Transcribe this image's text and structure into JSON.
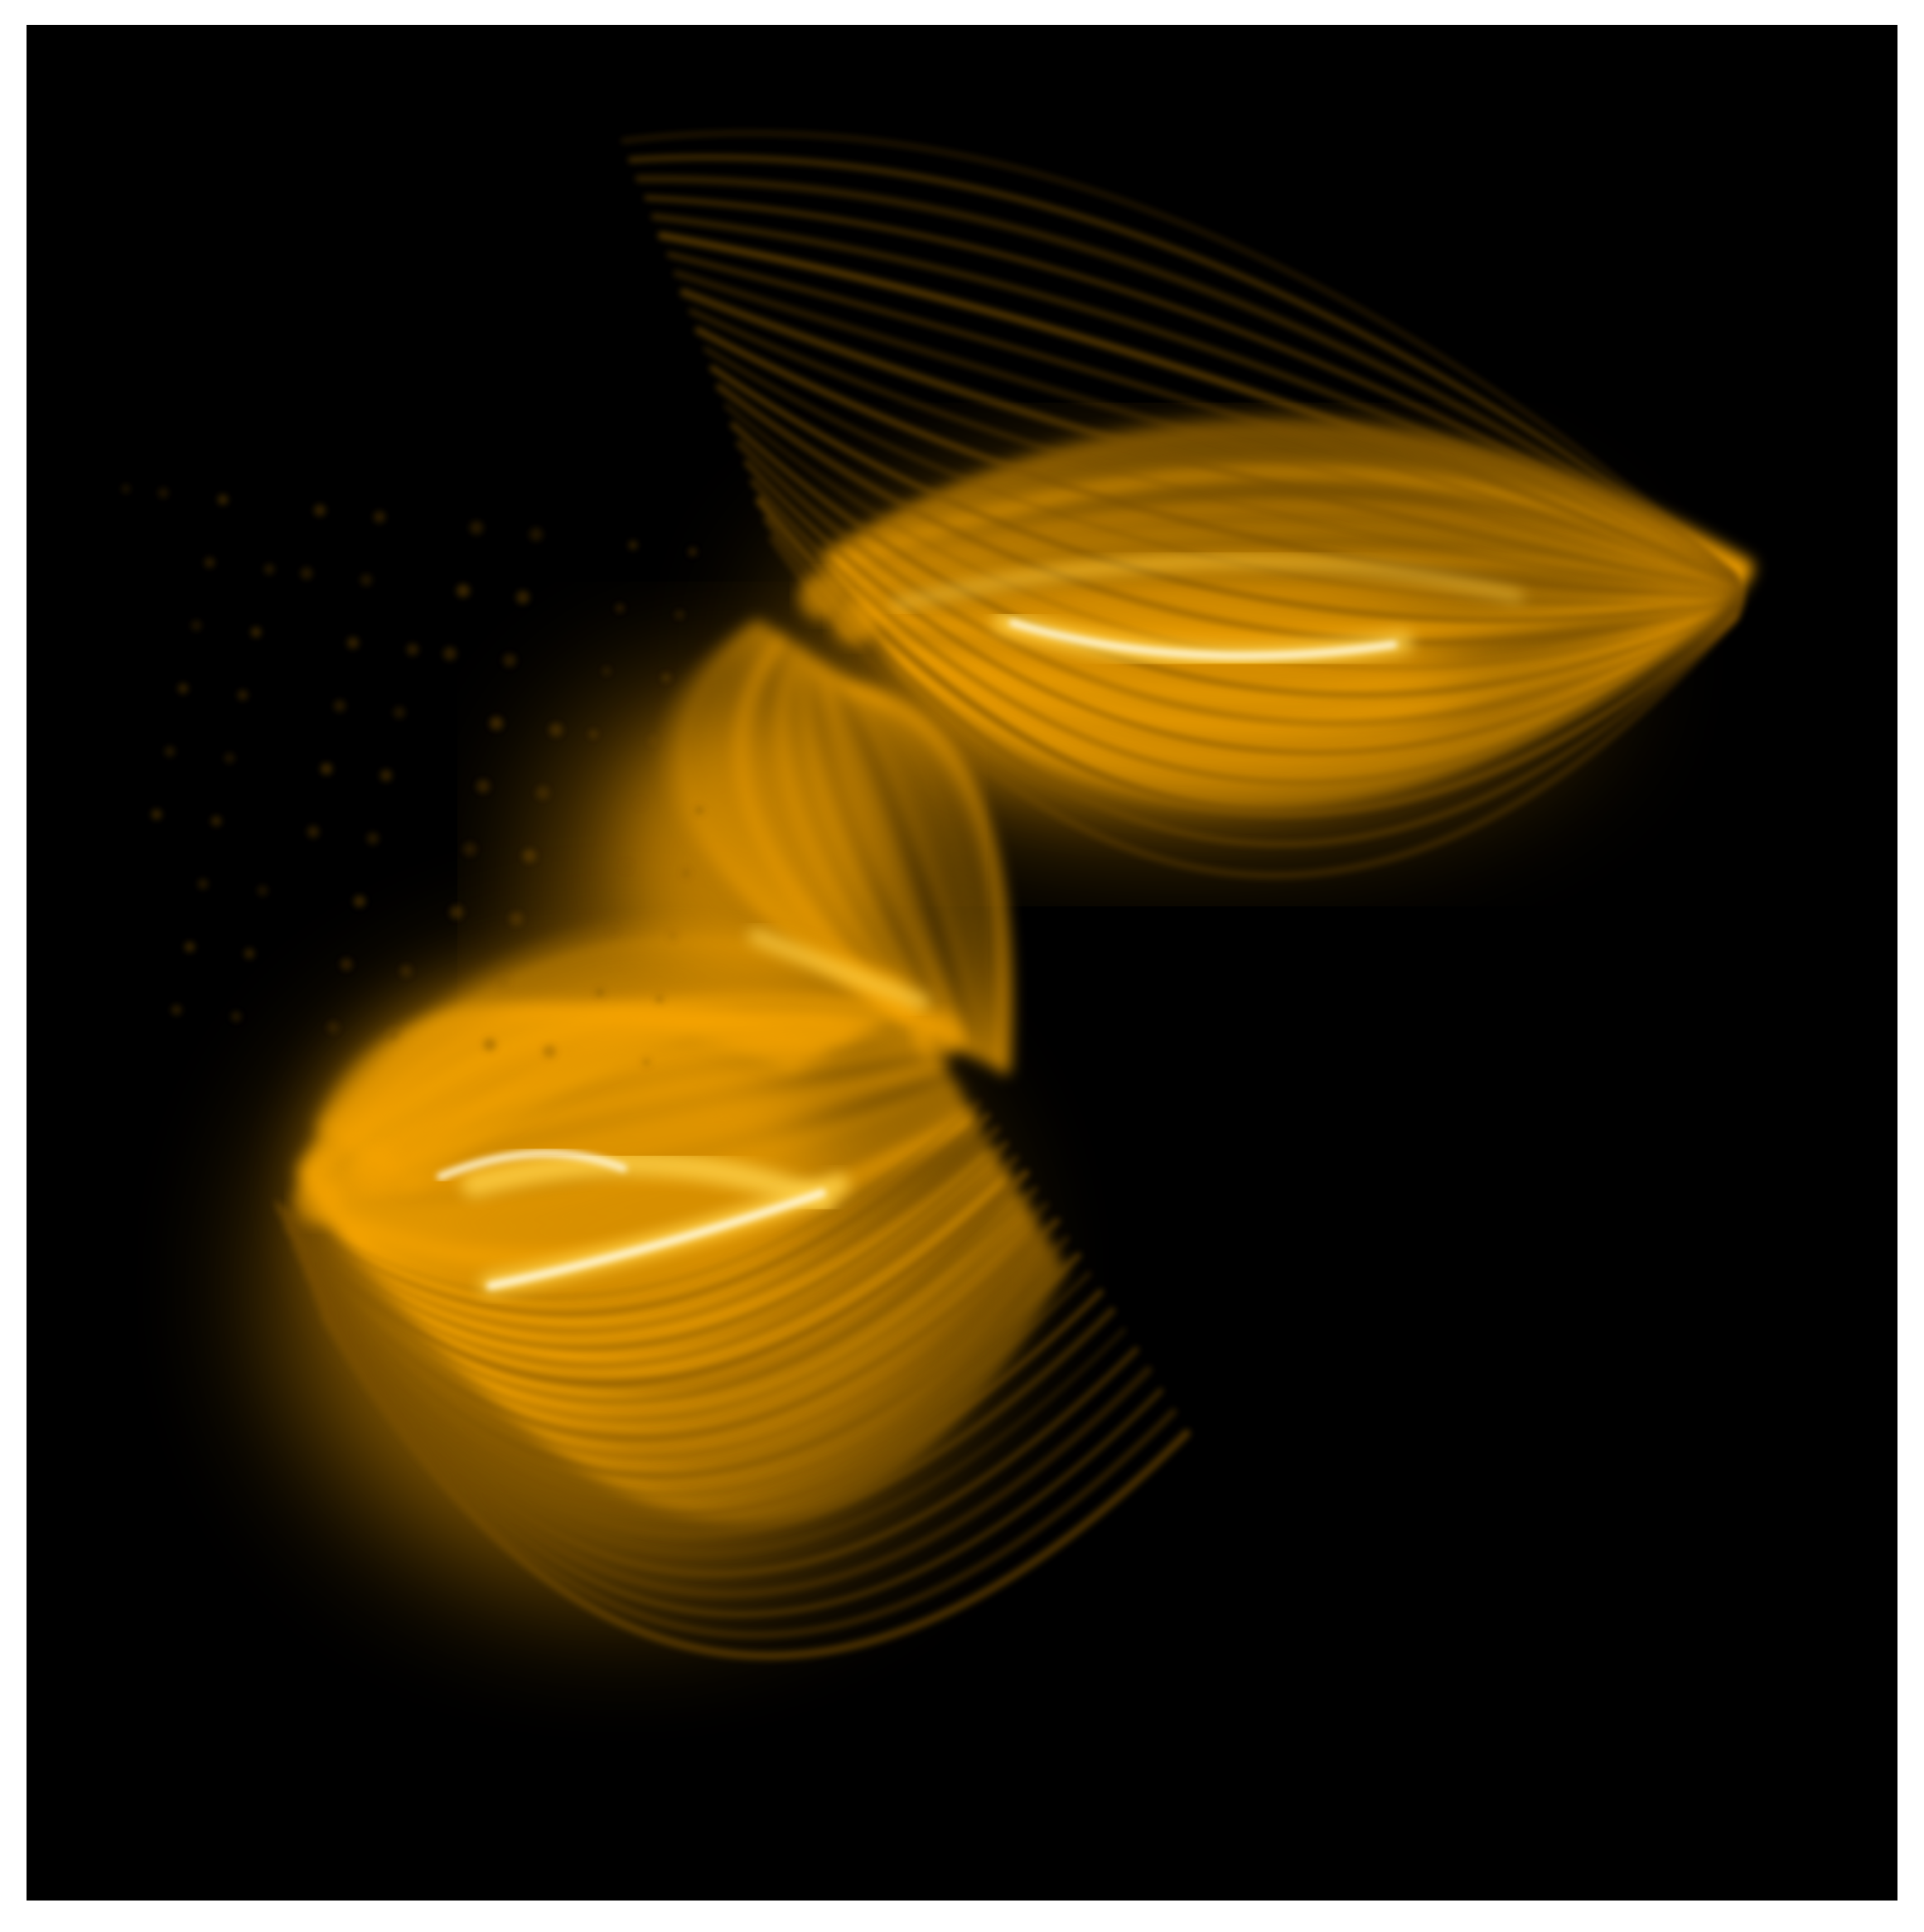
{
  "image": {
    "subject": "solar-coronal-loops",
    "background_color": "#000000",
    "frame_color": "#ffffff",
    "palette": {
      "glow": "#f5a300",
      "bright": "#ffd24a",
      "core": "#fff6d8",
      "dim": "#7a4e00"
    }
  }
}
